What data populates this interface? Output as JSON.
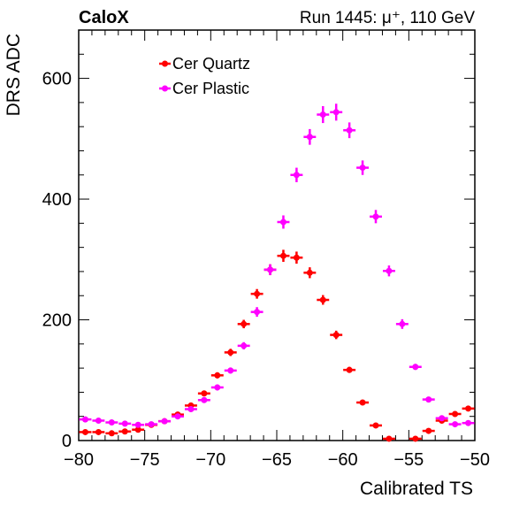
{
  "header": {
    "experiment": "CaloX",
    "run_info": "Run 1445:   μ⁺, 110 GeV"
  },
  "chart_data": {
    "type": "scatter",
    "xlabel": "Calibrated TS",
    "ylabel": "DRS ADC",
    "xlim": [
      -80,
      -50
    ],
    "ylim": [
      0,
      680
    ],
    "x_ticks": [
      -80,
      -75,
      -70,
      -65,
      -60,
      -55,
      -50
    ],
    "y_ticks": [
      0,
      200,
      400,
      600
    ],
    "grid": false,
    "legend_position": "top-left",
    "bin_width": 1,
    "series": [
      {
        "name": "Cer Quartz",
        "color": "#ff0000",
        "x": [
          -79.5,
          -78.5,
          -77.5,
          -76.5,
          -75.5,
          -74.5,
          -73.5,
          -72.5,
          -71.5,
          -70.5,
          -69.5,
          -68.5,
          -67.5,
          -66.5,
          -65.5,
          -64.5,
          -63.5,
          -62.5,
          -61.5,
          -60.5,
          -59.5,
          -58.5,
          -57.5,
          -56.5,
          -55.5,
          -54.5,
          -53.5,
          -52.5,
          -51.5,
          -50.5
        ],
        "y": [
          14,
          14,
          12,
          15,
          18,
          26,
          32,
          43,
          58,
          78,
          108,
          146,
          193,
          243,
          283,
          306,
          303,
          278,
          233,
          175,
          117,
          63,
          25,
          3,
          -5,
          3,
          16,
          33,
          44,
          53
        ],
        "yerr": [
          2,
          2,
          2,
          2,
          2,
          2,
          3,
          3,
          3,
          4,
          5,
          6,
          7,
          8,
          9,
          10,
          10,
          9,
          8,
          7,
          5,
          3,
          2,
          2,
          2,
          2,
          2,
          2,
          2,
          2
        ]
      },
      {
        "name": "Cer Plastic",
        "color": "#ff00ff",
        "x": [
          -79.5,
          -78.5,
          -77.5,
          -76.5,
          -75.5,
          -74.5,
          -73.5,
          -72.5,
          -71.5,
          -70.5,
          -69.5,
          -68.5,
          -67.5,
          -66.5,
          -65.5,
          -64.5,
          -63.5,
          -62.5,
          -61.5,
          -60.5,
          -59.5,
          -58.5,
          -57.5,
          -56.5,
          -55.5,
          -54.5,
          -53.5,
          -52.5,
          -51.5,
          -50.5
        ],
        "y": [
          35,
          33,
          30,
          28,
          26,
          27,
          32,
          40,
          52,
          67,
          88,
          116,
          157,
          213,
          283,
          362,
          440,
          503,
          540,
          544,
          514,
          452,
          371,
          281,
          193,
          122,
          68,
          37,
          27,
          29
        ],
        "yerr": [
          2,
          2,
          2,
          2,
          2,
          2,
          2,
          3,
          3,
          4,
          5,
          5,
          6,
          8,
          9,
          11,
          12,
          13,
          14,
          14,
          13,
          12,
          11,
          9,
          8,
          5,
          4,
          3,
          2,
          2
        ]
      }
    ]
  }
}
